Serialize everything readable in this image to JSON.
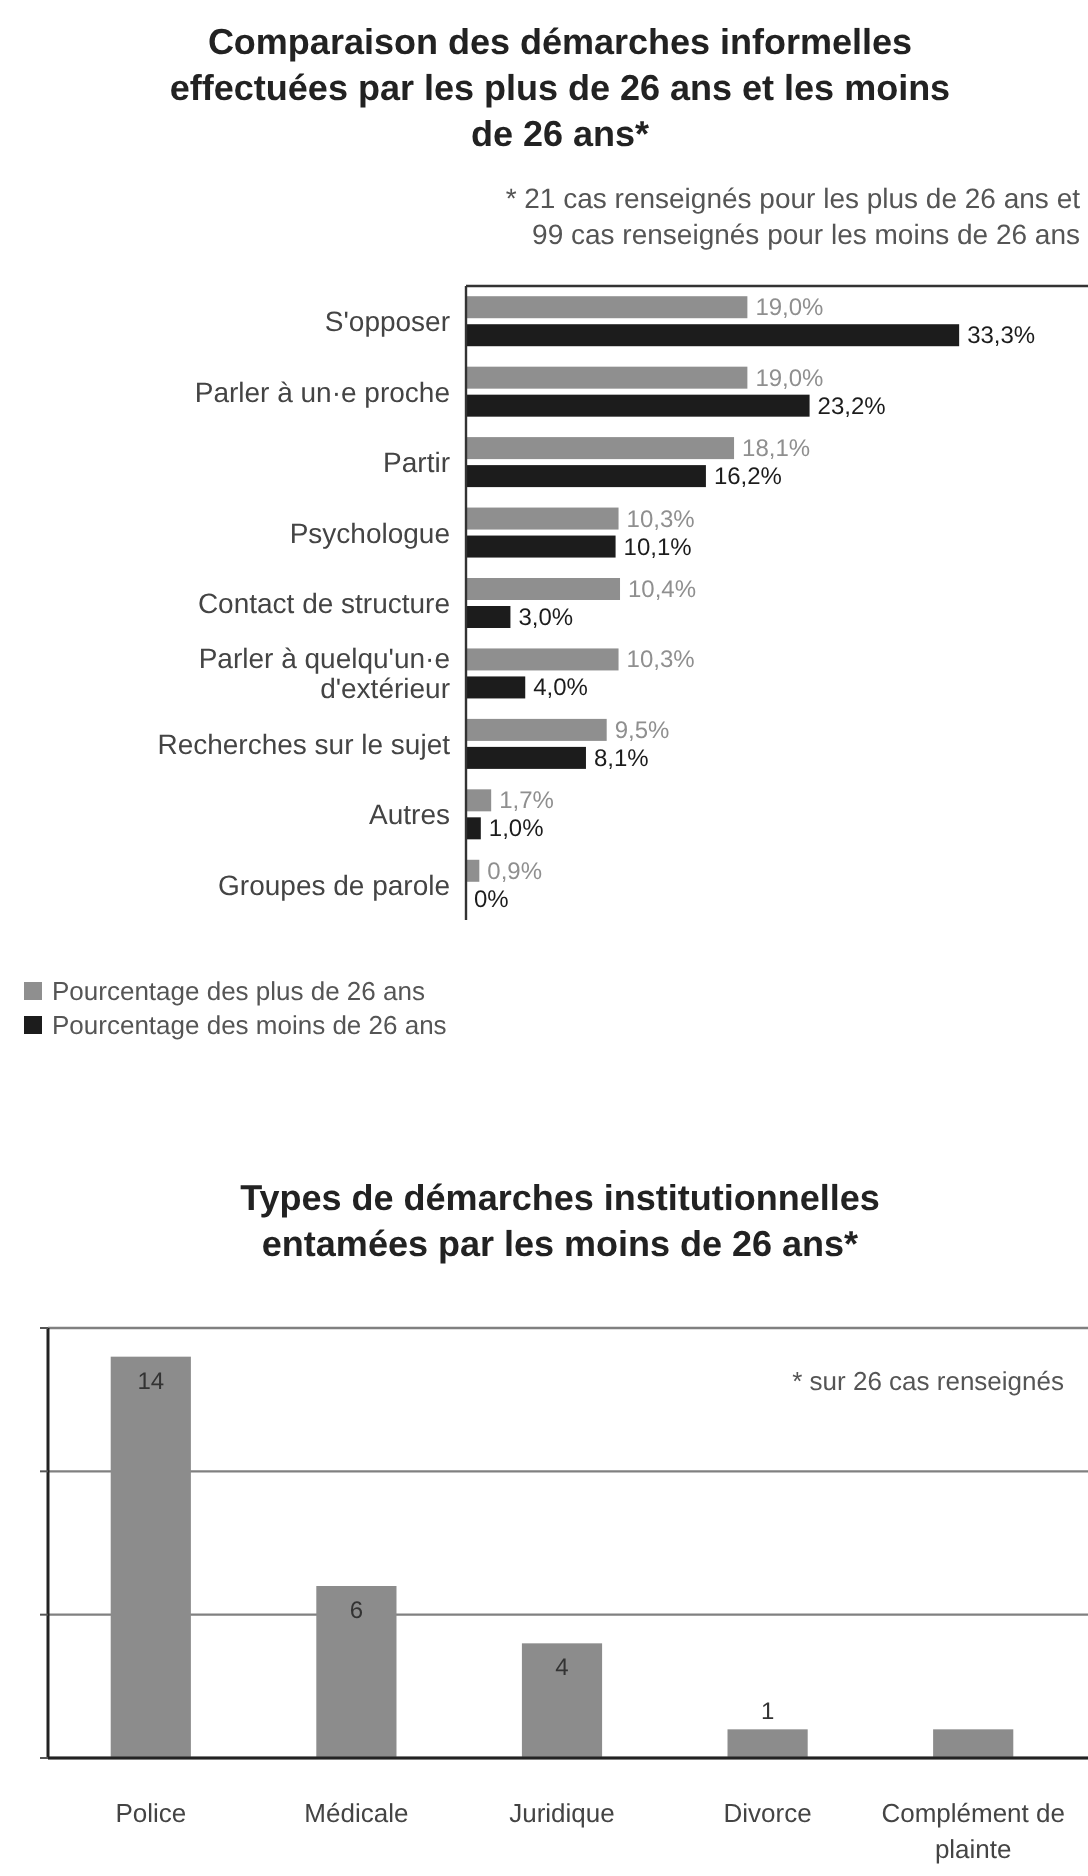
{
  "chart_data": [
    {
      "type": "bar",
      "orientation": "horizontal",
      "title": "Comparaison des démarches informelles effectuées par les plus de 26 ans et les moins de 26 ans*",
      "annotations": [
        "* 21 cas renseignés pour les plus de 26 ans et 99 cas renseignés pour les moins de 26 ans"
      ],
      "categories": [
        "S'opposer",
        "Parler à un·e proche",
        "Partir",
        "Psychologue",
        "Contact de structure",
        "Parler à quelqu'un·e d'extérieur",
        "Recherches sur le sujet",
        "Autres",
        "Groupes de parole"
      ],
      "series": [
        {
          "name": "Pourcentage des plus de 26 ans",
          "color": "#8f8f8f",
          "values": [
            19.0,
            19.0,
            18.1,
            10.3,
            10.4,
            10.3,
            9.5,
            1.7,
            0.9
          ],
          "value_labels": [
            "19,0%",
            "19,0%",
            "18,1%",
            "10,3%",
            "10,4%",
            "10,3%",
            "9,5%",
            "1,7%",
            "0,9%"
          ]
        },
        {
          "name": "Pourcentage des moins de 26 ans",
          "color": "#1c1c1c",
          "values": [
            33.3,
            23.2,
            16.2,
            10.1,
            3.0,
            4.0,
            8.1,
            1.0,
            0
          ],
          "value_labels": [
            "33,3%",
            "23,2%",
            "16,2%",
            "10,1%",
            "3,0%",
            "4,0%",
            "8,1%",
            "1,0%",
            "0%"
          ]
        }
      ],
      "xlim": [
        0,
        42
      ],
      "legend": "bottom",
      "tick_labels": "y"
    },
    {
      "type": "bar",
      "title": "Types de démarches institutionnelles entamées par les moins de 26 ans*",
      "annotations": [
        "* sur 26 cas renseignés"
      ],
      "categories": [
        "Police",
        "Médicale",
        "Juridique",
        "Divorce",
        "Complément de plainte"
      ],
      "values": [
        14,
        6,
        4,
        1,
        1
      ],
      "color": "#8c8c8c",
      "value_labels": [
        "14",
        "6",
        "4",
        "1",
        null
      ],
      "ylim": [
        0,
        15
      ],
      "yticks": [
        {
          "value": 0,
          "label": null
        },
        {
          "value": 5,
          "label": null
        },
        {
          "value": 10,
          "label": null
        },
        {
          "value": 15,
          "label": null
        }
      ],
      "grid": "y",
      "tick_labels": "x"
    }
  ]
}
